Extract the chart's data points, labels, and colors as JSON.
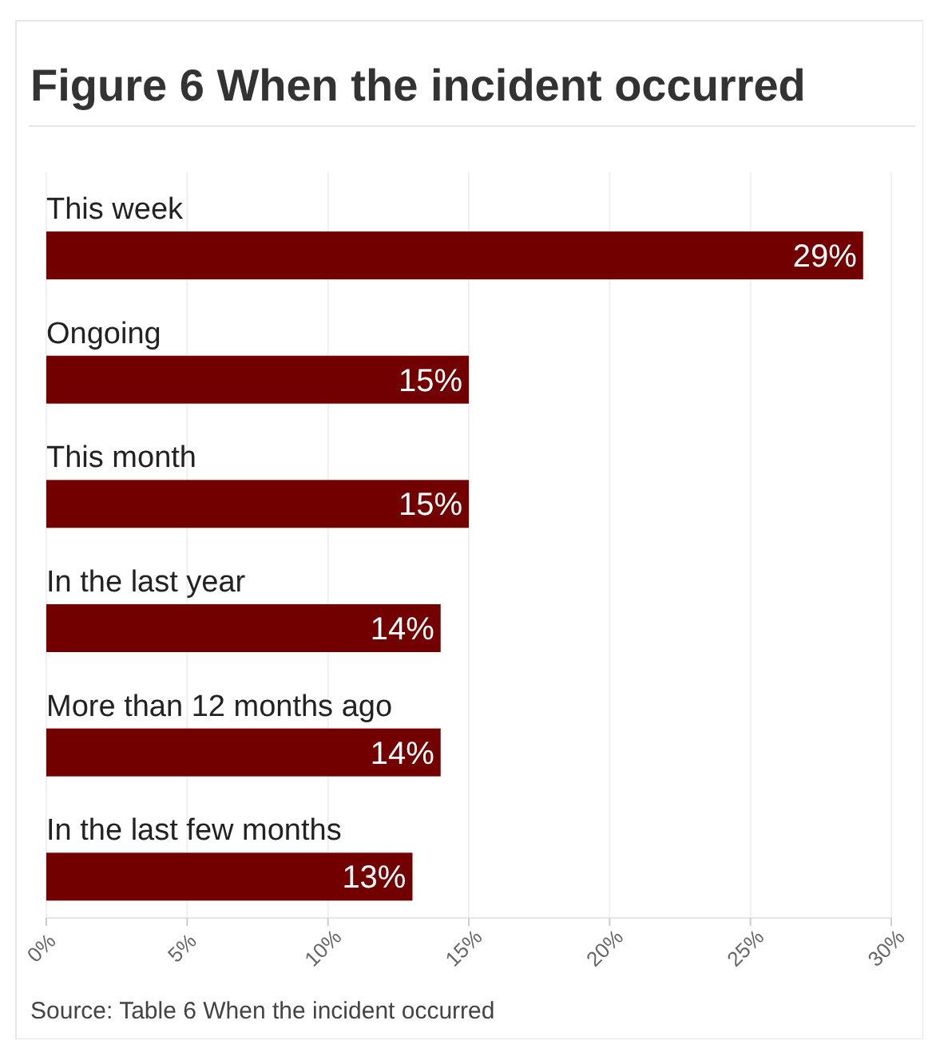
{
  "chart_data": {
    "type": "bar",
    "orientation": "horizontal",
    "title": "Figure 6 When the incident occurred",
    "categories": [
      "This week",
      "Ongoing",
      "This month",
      "In the last year",
      "More than 12 months ago",
      "In the last few months"
    ],
    "values": [
      29,
      15,
      15,
      14,
      14,
      13
    ],
    "value_labels": [
      "29%",
      "15%",
      "15%",
      "14%",
      "14%",
      "13%"
    ],
    "color": "#720000",
    "xlim": [
      0,
      30
    ],
    "xticks": [
      {
        "value": 0,
        "label": "0%"
      },
      {
        "value": 5,
        "label": "5%"
      },
      {
        "value": 10,
        "label": "10%"
      },
      {
        "value": 15,
        "label": "15%"
      },
      {
        "value": 20,
        "label": "20%"
      },
      {
        "value": 25,
        "label": "25%"
      },
      {
        "value": 30,
        "label": "30%"
      }
    ],
    "grid": "x",
    "annotations": [
      "Source: Table 6 When the incident occurred"
    ]
  }
}
